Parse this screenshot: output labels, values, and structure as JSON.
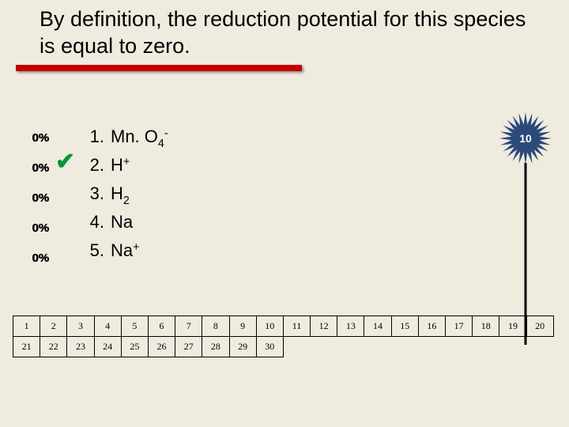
{
  "title": "By definition, the reduction potential for this species is equal to zero.",
  "underline_color": "#c00000",
  "percents": [
    "0%",
    "0%",
    "0%",
    "0%",
    "0%"
  ],
  "checkmark_index": 1,
  "answers": [
    {
      "num": "1.",
      "text": "Mn. O",
      "sub": "4",
      "sup": "-"
    },
    {
      "num": "2.",
      "text": "H",
      "sub": "",
      "sup": "+"
    },
    {
      "num": "3.",
      "text": "H",
      "sub": "2",
      "sup": ""
    },
    {
      "num": "4.",
      "text": "Na",
      "sub": "",
      "sup": ""
    },
    {
      "num": "5.",
      "text": "Na",
      "sub": "",
      "sup": "+"
    }
  ],
  "starburst": {
    "label": "10",
    "fill": "#2b4a7a",
    "text_color": "#ffffff",
    "points": 24
  },
  "grid": {
    "row1": [
      "1",
      "2",
      "3",
      "4",
      "5",
      "6",
      "7",
      "8",
      "9",
      "10",
      "11",
      "12",
      "13",
      "14",
      "15",
      "16",
      "17",
      "18",
      "19",
      "20"
    ],
    "row2": [
      "21",
      "22",
      "23",
      "24",
      "25",
      "26",
      "27",
      "28",
      "29",
      "30",
      "",
      "",
      "",
      "",
      "",
      "",
      "",
      "",
      "",
      ""
    ]
  },
  "background_color": "#f0ebdf"
}
